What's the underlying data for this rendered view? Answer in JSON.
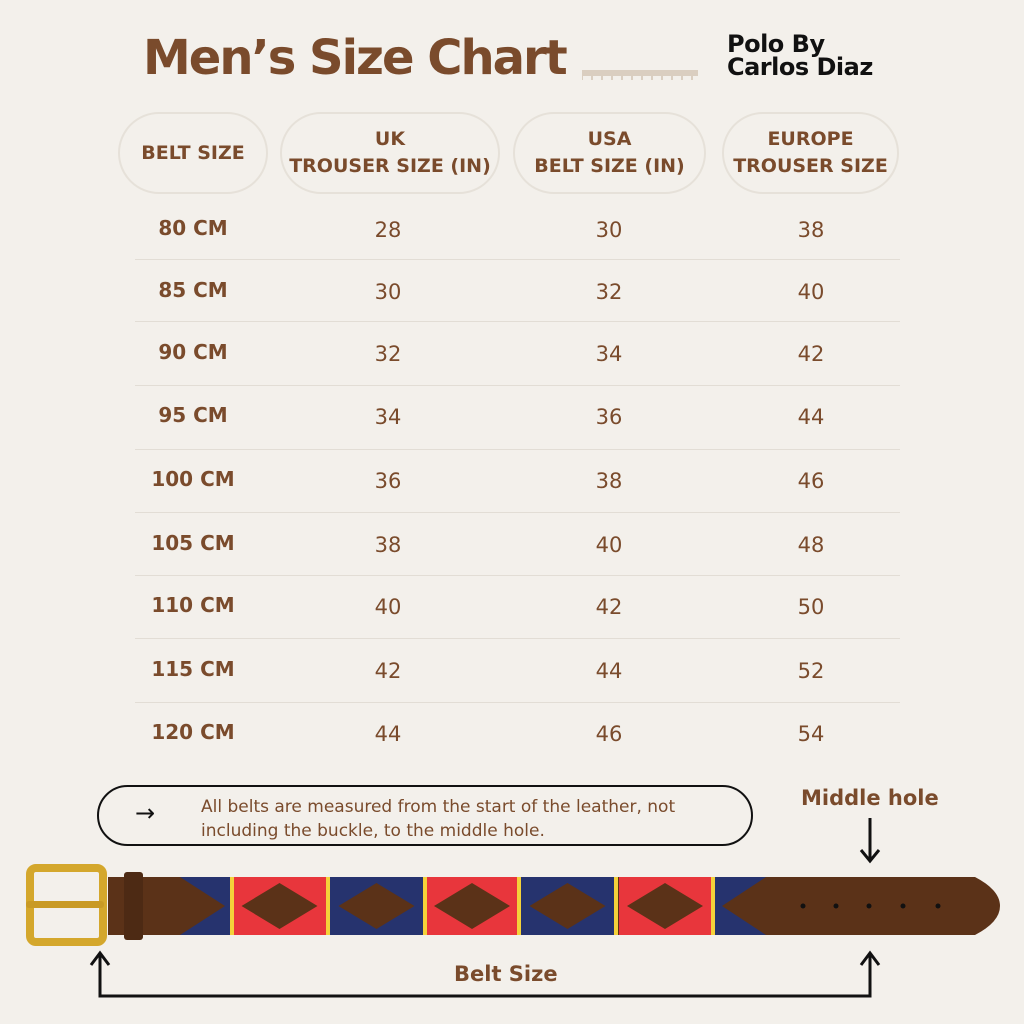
{
  "header": {
    "title": "Men’s Size Chart",
    "brand_line1": "Polo By",
    "brand_line2": "Carlos Diaz"
  },
  "chart_data": {
    "type": "table",
    "title": "Men’s Size Chart",
    "columns": [
      {
        "line1": "BELT SIZE",
        "line2": ""
      },
      {
        "line1": "UK",
        "line2": "TROUSER SIZE (IN)"
      },
      {
        "line1": "USA",
        "line2": "BELT SIZE (IN)"
      },
      {
        "line1": "EUROPE",
        "line2": "TROUSER SIZE"
      }
    ],
    "rows": [
      [
        "80 CM",
        "28",
        "30",
        "38"
      ],
      [
        "85 CM",
        "30",
        "32",
        "40"
      ],
      [
        "90 CM",
        "32",
        "34",
        "42"
      ],
      [
        "95 CM",
        "34",
        "36",
        "44"
      ],
      [
        "100 CM",
        "36",
        "38",
        "46"
      ],
      [
        "105 CM",
        "38",
        "40",
        "48"
      ],
      [
        "110 CM",
        "40",
        "42",
        "50"
      ],
      [
        "115 CM",
        "42",
        "44",
        "52"
      ],
      [
        "120 CM",
        "44",
        "46",
        "54"
      ]
    ]
  },
  "note": {
    "icon": "arrow-right-icon",
    "arrow": "→",
    "text": "All belts are measured from the start of the leather, not including the buckle, to the middle hole."
  },
  "diagram": {
    "middle_hole_label": "Middle hole",
    "belt_size_label": "Belt Size"
  },
  "colors": {
    "background": "#f3f0eb",
    "brown_text": "#7a4b2c",
    "leather": "#5b3218",
    "navy": "#26336e",
    "red": "#e8363c",
    "yellow": "#f4d23a",
    "brass": "#d4a72c"
  }
}
